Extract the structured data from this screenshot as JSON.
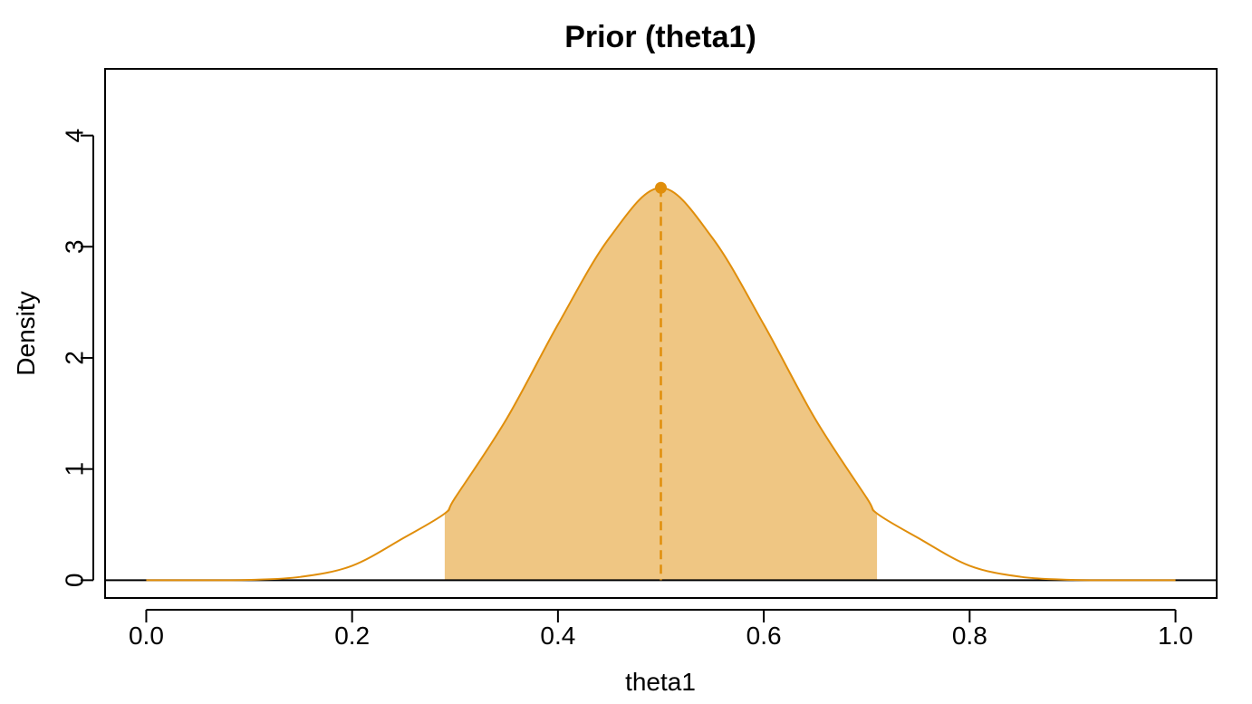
{
  "chart_data": {
    "type": "area",
    "title": "Prior (theta1)",
    "xlabel": "theta1",
    "ylabel": "Density",
    "xlim": [
      -0.04,
      1.04
    ],
    "ylim": [
      -0.16,
      4.6
    ],
    "x_ticks": [
      0.0,
      0.2,
      0.4,
      0.6,
      0.8,
      1.0
    ],
    "x_tick_labels": [
      "0.0",
      "0.2",
      "0.4",
      "0.6",
      "0.8",
      "1.0"
    ],
    "y_ticks": [
      0,
      1,
      2,
      3,
      4
    ],
    "y_tick_labels": [
      "0",
      "1",
      "2",
      "3",
      "4"
    ],
    "grid": false,
    "series": [
      {
        "x": [
          0.0,
          0.05,
          0.1,
          0.15,
          0.2,
          0.25,
          0.29,
          0.3,
          0.35,
          0.4,
          0.45,
          0.5,
          0.55,
          0.6,
          0.65,
          0.7,
          0.71,
          0.75,
          0.8,
          0.85,
          0.9,
          0.95,
          1.0
        ],
        "y": [
          0.0,
          0.0,
          0.003,
          0.03,
          0.13,
          0.38,
          0.6,
          0.74,
          1.45,
          2.3,
          3.08,
          3.53,
          3.08,
          2.3,
          1.45,
          0.74,
          0.6,
          0.38,
          0.13,
          0.03,
          0.003,
          0.0,
          0.0
        ]
      }
    ],
    "shaded_interval": [
      0.29,
      0.71
    ],
    "mode": {
      "x": 0.5,
      "y": 3.53
    },
    "colors": {
      "curve": "#e08e0b",
      "fill": "#efc683",
      "axis": "#000000"
    }
  }
}
